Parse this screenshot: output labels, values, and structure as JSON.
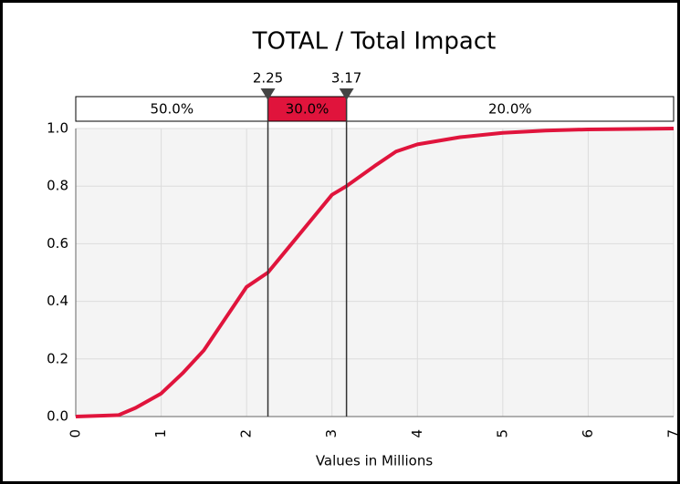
{
  "chart_data": {
    "type": "line",
    "title": "TOTAL / Total Impact",
    "xlabel": "Values in Millions",
    "x": [
      0,
      0.5,
      0.7,
      1.0,
      1.25,
      1.5,
      1.75,
      2.0,
      2.25,
      2.5,
      2.75,
      3.0,
      3.17,
      3.5,
      3.75,
      4.0,
      4.5,
      5.0,
      5.5,
      6.0,
      7.0
    ],
    "values": [
      0,
      0.005,
      0.03,
      0.08,
      0.15,
      0.23,
      0.34,
      0.45,
      0.5,
      0.59,
      0.68,
      0.77,
      0.8,
      0.87,
      0.92,
      0.945,
      0.97,
      0.985,
      0.993,
      0.997,
      1.0
    ],
    "color": "#e0143c",
    "xlim": [
      0,
      7
    ],
    "xticks": [
      0,
      1,
      2,
      3,
      4,
      5,
      6,
      7
    ],
    "ylim": [
      0,
      1
    ],
    "yticks": [
      {
        "value": 0,
        "label": "0.0"
      },
      0.2,
      0.4,
      0.6,
      0.8,
      {
        "value": 1,
        "label": "1.0"
      }
    ],
    "grid": true,
    "delimiters": [
      2.25,
      3.17
    ],
    "bands": [
      {
        "value": 50,
        "label": "50.0%"
      },
      {
        "value": 30,
        "label": "30.0%"
      },
      {
        "value": 20,
        "label": "20.0%"
      }
    ]
  }
}
